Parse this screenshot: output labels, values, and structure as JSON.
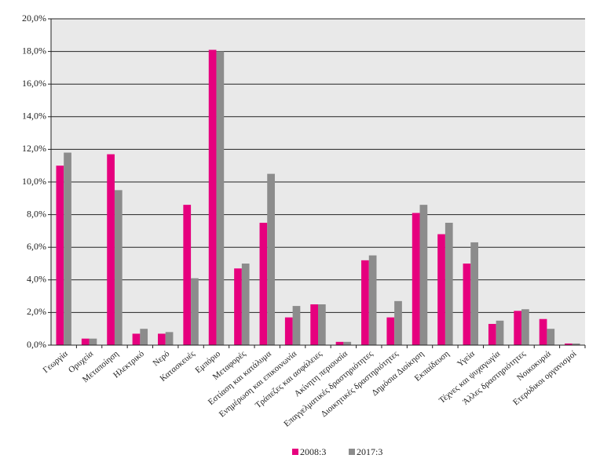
{
  "chart_data": {
    "type": "bar",
    "categories": [
      "Γεωργία",
      "Ορυχεία",
      "Μεταποίηση",
      "Ηλεκτρικό",
      "Νερό",
      "Κατασκευές",
      "Εμπόριο",
      "Μεταφορές",
      "Εστίαση και κατάλυμα",
      "Ενημέρωση και επικοινωνία",
      "Τράπεζες και ασφάλειες",
      "Ακίνητη περιουσία",
      "Επαγγελματικές δραστηριότητες",
      "Διοικητικές δραστηριότητες",
      "Δημόσια Διοίκηση",
      "Εκπαίδευση",
      "Υγεία",
      "Τέχνες και ψυχαγωγία",
      "Άλλες δραστηριότητες",
      "Νοικοκυριά",
      "Ετερόδικοι οργανισμοί"
    ],
    "series": [
      {
        "name": "2008:3",
        "color": "#e6007e",
        "values": [
          11.0,
          0.4,
          11.7,
          0.7,
          0.7,
          8.6,
          18.1,
          4.7,
          7.5,
          1.7,
          2.5,
          0.2,
          5.2,
          1.7,
          8.1,
          6.8,
          5.0,
          1.3,
          2.1,
          1.6,
          0.1
        ]
      },
      {
        "name": "2017:3",
        "color": "#8c8c8c",
        "values": [
          11.8,
          0.4,
          9.5,
          1.0,
          0.8,
          4.1,
          18.0,
          5.0,
          10.5,
          2.4,
          2.5,
          0.2,
          5.5,
          2.7,
          8.6,
          7.5,
          6.3,
          1.5,
          2.2,
          1.0,
          0.1
        ]
      }
    ],
    "ylim": [
      0,
      20
    ],
    "yticks": [
      {
        "value": 0,
        "label": "0,0%"
      },
      {
        "value": 2,
        "label": "2,0%"
      },
      {
        "value": 4,
        "label": "4,0%"
      },
      {
        "value": 6,
        "label": "6,0%"
      },
      {
        "value": 8,
        "label": "8,0%"
      },
      {
        "value": 10,
        "label": "10,0%"
      },
      {
        "value": 12,
        "label": "12,0%"
      },
      {
        "value": 14,
        "label": "14,0%"
      },
      {
        "value": 16,
        "label": "16,0%"
      },
      {
        "value": 18,
        "label": "18,0%"
      },
      {
        "value": 20,
        "label": "20,0%"
      }
    ],
    "grid": true,
    "legend": "bottom"
  }
}
